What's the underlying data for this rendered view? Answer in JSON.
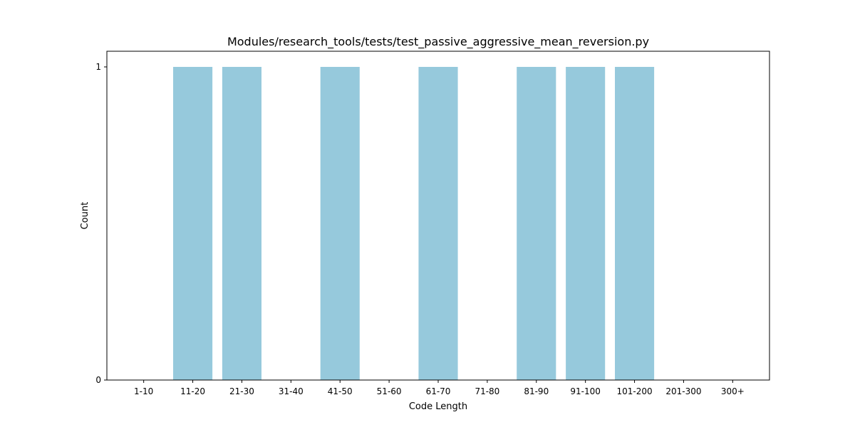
{
  "chart_data": {
    "type": "bar",
    "title": "Modules/research_tools/tests/test_passive_aggressive_mean_reversion.py",
    "xlabel": "Code Length",
    "ylabel": "Count",
    "categories": [
      "1-10",
      "11-20",
      "21-30",
      "31-40",
      "41-50",
      "51-60",
      "61-70",
      "71-80",
      "81-90",
      "91-100",
      "101-200",
      "201-300",
      "300+"
    ],
    "values": [
      0,
      1,
      1,
      0,
      1,
      0,
      1,
      0,
      1,
      1,
      1,
      0,
      0
    ],
    "ylim": [
      0,
      1.05
    ],
    "yticks": [
      0,
      1
    ],
    "ytick_labels": [
      "0",
      "1"
    ],
    "bar_color": "#96c9dc",
    "grid": false,
    "legend": "none"
  }
}
